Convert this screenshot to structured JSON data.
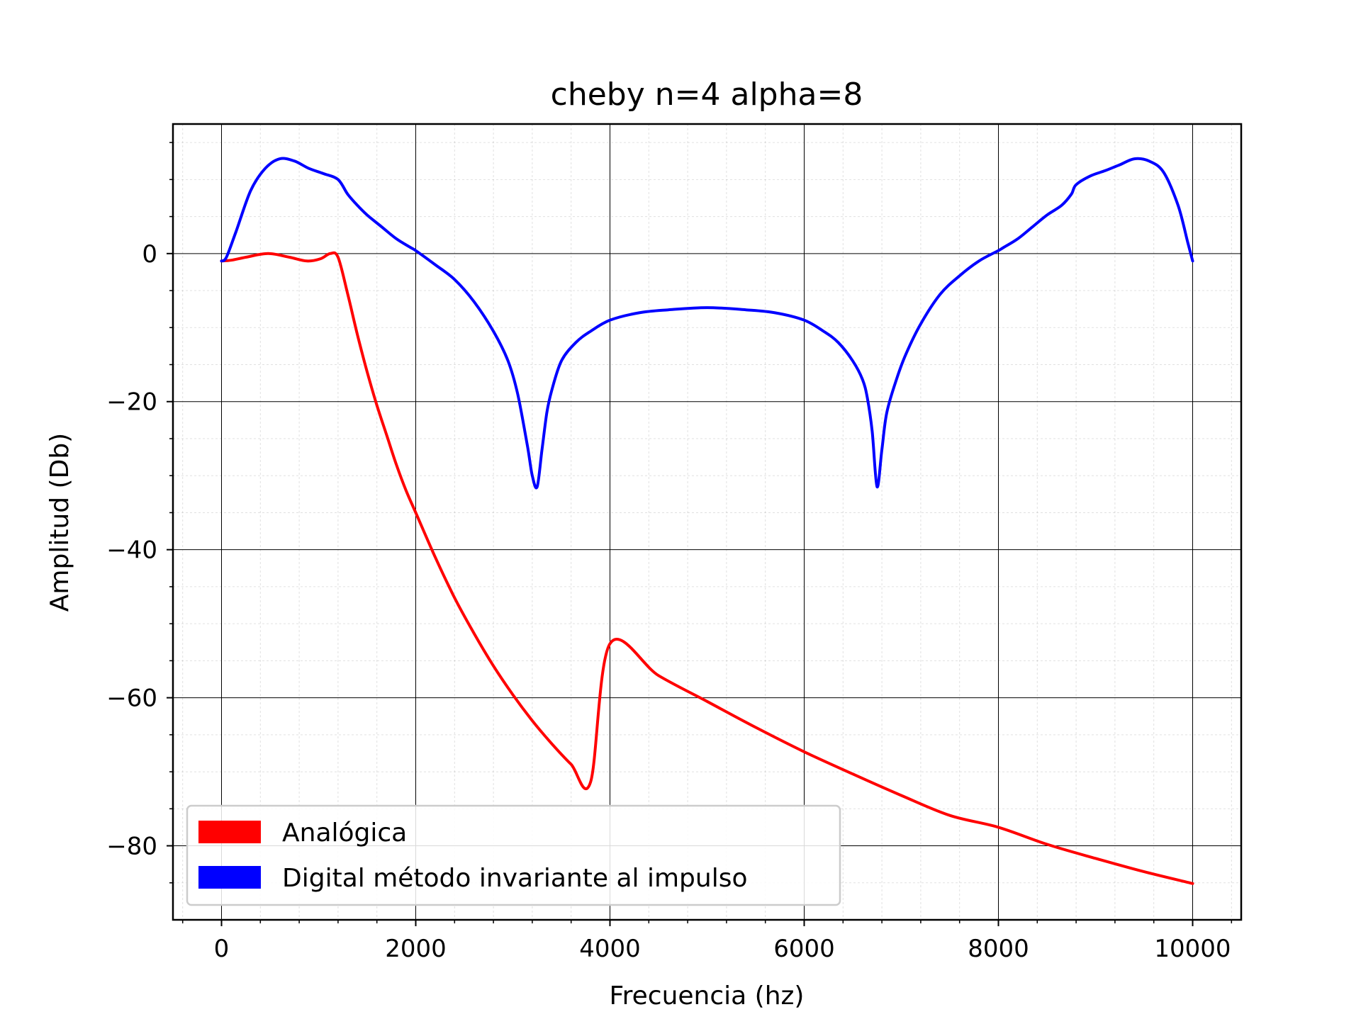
{
  "chart_data": {
    "type": "line",
    "title": "cheby n=4 alpha=8",
    "xlabel": "Frecuencia (hz)",
    "ylabel": "Amplitud (Db)",
    "xlim": [
      -500,
      10500
    ],
    "ylim": [
      -90,
      17.5
    ],
    "xticks": [
      0,
      2000,
      4000,
      6000,
      8000,
      10000
    ],
    "xtick_labels": [
      "0",
      "2000",
      "4000",
      "6000",
      "8000",
      "10000"
    ],
    "yticks": [
      0,
      -20,
      -40,
      -60,
      -80
    ],
    "ytick_labels": [
      "0",
      "−20",
      "−40",
      "−60",
      "−80"
    ],
    "grid": true,
    "minor_grid": true,
    "legend_position": "lower-left",
    "series": [
      {
        "name": "Analógica",
        "color": "#ff0000",
        "x": [
          0,
          100,
          250,
          480,
          700,
          880,
          1020,
          1120,
          1200,
          1300,
          1400,
          1500,
          1600,
          1700,
          1800,
          1900,
          2000,
          2200,
          2400,
          2600,
          2800,
          3000,
          3200,
          3400,
          3600,
          3800,
          4000,
          4500,
          5000,
          5500,
          6000,
          6500,
          7000,
          7500,
          8000,
          8500,
          9000,
          9500,
          10000
        ],
        "y": [
          -1,
          -0.9,
          -0.5,
          0,
          -0.5,
          -1,
          -0.7,
          0,
          -0.5,
          -5.5,
          -11,
          -16,
          -20.5,
          -24.5,
          -28.5,
          -32,
          -35,
          -41,
          -46.5,
          -51.3,
          -55.7,
          -59.6,
          -63.1,
          -66.2,
          -69,
          -71.4,
          -52.7,
          -57,
          -60.5,
          -64,
          -67.3,
          -70.3,
          -73.2,
          -75.9,
          -77.5,
          -79.8,
          -81.7,
          -83.5,
          -85.1
        ]
      },
      {
        "name": "Digital método invariante al impulso",
        "color": "#0000ff",
        "x": [
          0,
          50,
          150,
          300,
          450,
          600,
          750,
          900,
          1050,
          1200,
          1300,
          1400,
          1500,
          1650,
          1800,
          1950,
          2000,
          2200,
          2400,
          2600,
          2800,
          2950,
          3050,
          3150,
          3200,
          3250,
          3300,
          3350,
          3400,
          3500,
          3650,
          3800,
          4000,
          4300,
          4600,
          5000,
          5400,
          5700,
          6000,
          6200,
          6350,
          6500,
          6600,
          6650,
          6700,
          6750,
          6800,
          6850,
          6950,
          7050,
          7200,
          7400,
          7600,
          7800,
          8000,
          8050,
          8200,
          8350,
          8500,
          8650,
          8750,
          8800,
          8950,
          9100,
          9250,
          9400,
          9550,
          9700,
          9850,
          9950,
          10000
        ],
        "y": [
          -1,
          -0.5,
          3,
          8.5,
          11.5,
          12.8,
          12.5,
          11.5,
          10.8,
          10,
          8,
          6.5,
          5.2,
          3.6,
          2,
          0.8,
          0.4,
          -1.5,
          -3.5,
          -6.5,
          -10.5,
          -14.5,
          -19,
          -26,
          -30,
          -31.5,
          -26.5,
          -21.5,
          -18.5,
          -14.5,
          -12,
          -10.5,
          -9,
          -8,
          -7.6,
          -7.3,
          -7.6,
          -8,
          -9,
          -10.5,
          -12,
          -14.5,
          -17,
          -19.5,
          -24,
          -31.5,
          -26.5,
          -21.5,
          -17,
          -13.5,
          -9.5,
          -5.5,
          -3,
          -1,
          0.4,
          0.8,
          2,
          3.6,
          5.2,
          6.5,
          8,
          9.3,
          10.5,
          11.2,
          12,
          12.8,
          12.5,
          11,
          6.5,
          1.5,
          -1
        ]
      }
    ]
  }
}
